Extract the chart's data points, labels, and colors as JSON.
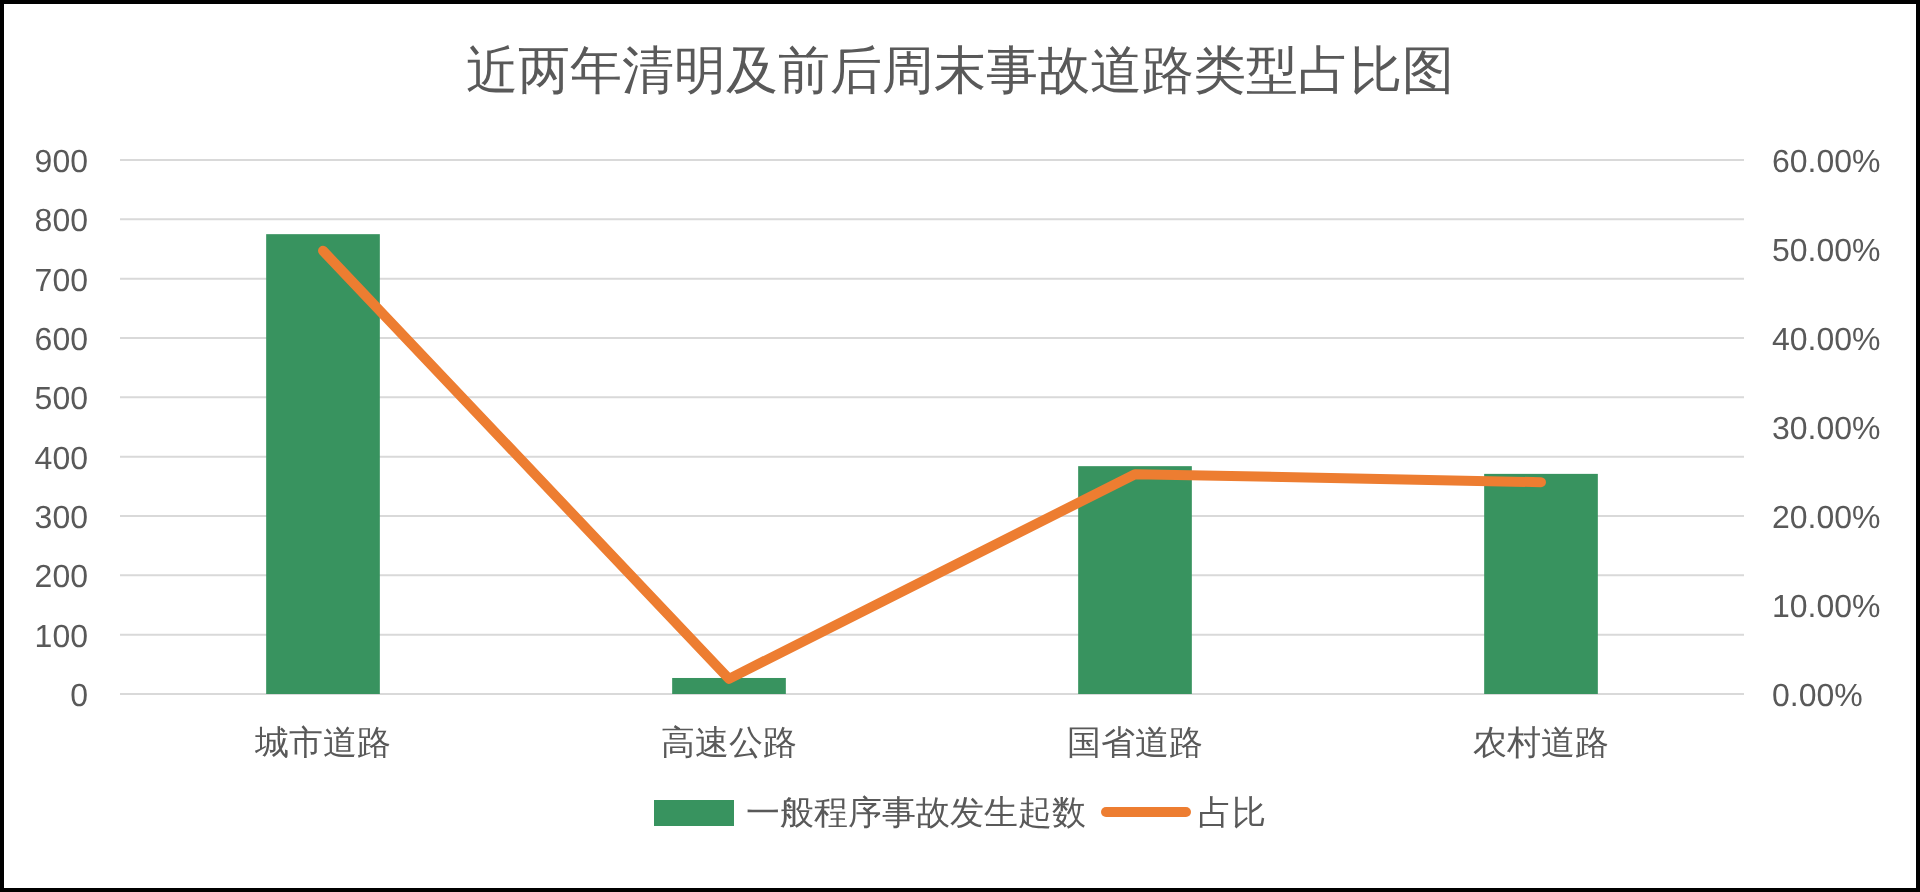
{
  "chart_data": {
    "type": "bar",
    "title": "近两年清明及前后周末事故道路类型占比图",
    "categories": [
      "城市道路",
      "高速公路",
      "国省道路",
      "农村道路"
    ],
    "series": [
      {
        "name": "一般程序事故发生起数",
        "color": "#38935f",
        "values": [
          775,
          27,
          384,
          371
        ]
      },
      {
        "name": "占比",
        "type": "line",
        "color": "#ed7d31",
        "axis": "y2",
        "values": [
          0.498,
          0.017,
          0.247,
          0.238
        ]
      }
    ],
    "ylim": [
      0,
      900
    ],
    "yticks": [
      0,
      100,
      200,
      300,
      400,
      500,
      600,
      700,
      800,
      900
    ],
    "y2lim": [
      0,
      0.6
    ],
    "y2ticks": [
      {
        "value": 0,
        "label": "0.00%"
      },
      {
        "value": 0.1,
        "label": "10.00%"
      },
      {
        "value": 0.2,
        "label": "20.00%"
      },
      {
        "value": 0.3,
        "label": "30.00%"
      },
      {
        "value": 0.4,
        "label": "40.00%"
      },
      {
        "value": 0.5,
        "label": "50.00%"
      },
      {
        "value": 0.6,
        "label": "60.00%"
      }
    ],
    "grid": "y",
    "legend": "bottom"
  }
}
